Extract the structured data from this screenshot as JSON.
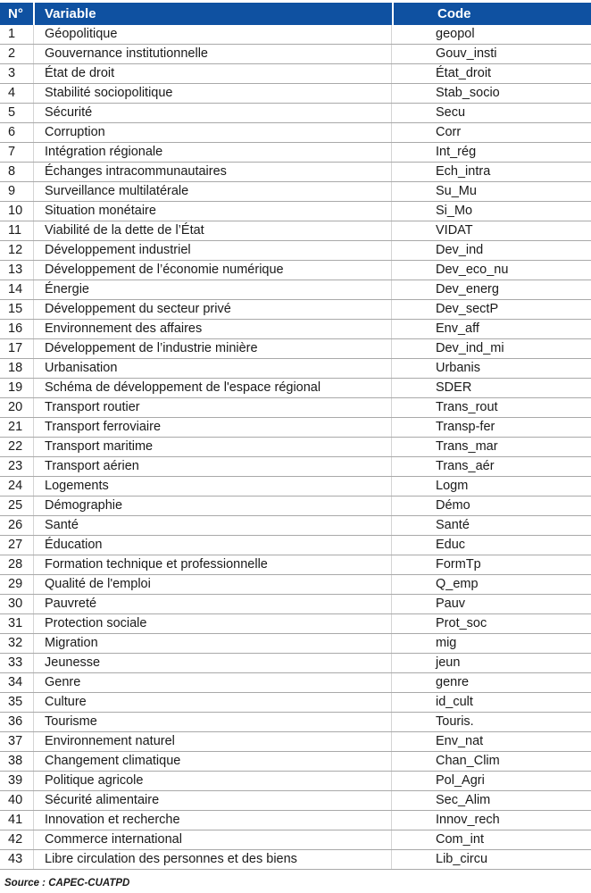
{
  "table": {
    "columns": [
      {
        "key": "num",
        "label": "N°"
      },
      {
        "key": "variable",
        "label": "Variable"
      },
      {
        "key": "code",
        "label": "Code"
      }
    ],
    "rows": [
      {
        "num": "1",
        "variable": "Géopolitique",
        "code": "geopol"
      },
      {
        "num": "2",
        "variable": "Gouvernance institutionnelle",
        "code": "Gouv_insti"
      },
      {
        "num": "3",
        "variable": "État de droit",
        "code": "État_droit"
      },
      {
        "num": "4",
        "variable": "Stabilité sociopolitique",
        "code": "Stab_socio"
      },
      {
        "num": "5",
        "variable": "Sécurité",
        "code": "Secu"
      },
      {
        "num": "6",
        "variable": "Corruption",
        "code": "Corr"
      },
      {
        "num": "7",
        "variable": "Intégration régionale",
        "code": "Int_rég"
      },
      {
        "num": "8",
        "variable": "Échanges intracommunautaires",
        "code": "Ech_intra"
      },
      {
        "num": "9",
        "variable": "Surveillance multilatérale",
        "code": "Su_Mu"
      },
      {
        "num": "10",
        "variable": "Situation monétaire",
        "code": "Si_Mo"
      },
      {
        "num": "11",
        "variable": "Viabilité de la dette de l’État",
        "code": "VIDAT"
      },
      {
        "num": "12",
        "variable": "Développement industriel",
        "code": "Dev_ind"
      },
      {
        "num": "13",
        "variable": "Développement de l’économie numérique",
        "code": "Dev_eco_nu"
      },
      {
        "num": "14",
        "variable": "Énergie",
        "code": "Dev_energ"
      },
      {
        "num": "15",
        "variable": "Développement du secteur privé",
        "code": "Dev_sectP"
      },
      {
        "num": "16",
        "variable": "Environnement des affaires",
        "code": "Env_aff"
      },
      {
        "num": "17",
        "variable": "Développement de l’industrie minière",
        "code": "Dev_ind_mi"
      },
      {
        "num": "18",
        "variable": "Urbanisation",
        "code": "Urbanis"
      },
      {
        "num": "19",
        "variable": "Schéma de développement de l'espace régional",
        "code": "SDER"
      },
      {
        "num": "20",
        "variable": "Transport routier",
        "code": "Trans_rout"
      },
      {
        "num": "21",
        "variable": "Transport ferroviaire",
        "code": "Transp-fer"
      },
      {
        "num": "22",
        "variable": "Transport maritime",
        "code": "Trans_mar"
      },
      {
        "num": "23",
        "variable": "Transport aérien",
        "code": "Trans_aér"
      },
      {
        "num": "24",
        "variable": "Logements",
        "code": "Logm"
      },
      {
        "num": "25",
        "variable": "Démographie",
        "code": "Démo"
      },
      {
        "num": "26",
        "variable": "Santé",
        "code": "Santé"
      },
      {
        "num": "27",
        "variable": "Éducation",
        "code": "Educ"
      },
      {
        "num": "28",
        "variable": "Formation technique et professionnelle",
        "code": "FormTp"
      },
      {
        "num": "29",
        "variable": "Qualité de l'emploi",
        "code": "Q_emp"
      },
      {
        "num": "30",
        "variable": "Pauvreté",
        "code": "Pauv"
      },
      {
        "num": "31",
        "variable": "Protection sociale",
        "code": "Prot_soc"
      },
      {
        "num": "32",
        "variable": "Migration",
        "code": "mig"
      },
      {
        "num": "33",
        "variable": "Jeunesse",
        "code": "jeun"
      },
      {
        "num": "34",
        "variable": "Genre",
        "code": "genre"
      },
      {
        "num": "35",
        "variable": "Culture",
        "code": "id_cult"
      },
      {
        "num": "36",
        "variable": "Tourisme",
        "code": "Touris."
      },
      {
        "num": "37",
        "variable": "Environnement naturel",
        "code": "Env_nat"
      },
      {
        "num": "38",
        "variable": "Changement climatique",
        "code": "Chan_Clim"
      },
      {
        "num": "39",
        "variable": "Politique agricole",
        "code": "Pol_Agri"
      },
      {
        "num": "40",
        "variable": "Sécurité alimentaire",
        "code": "Sec_Alim"
      },
      {
        "num": "41",
        "variable": "Innovation et recherche",
        "code": "Innov_rech"
      },
      {
        "num": "42",
        "variable": "Commerce international",
        "code": "Com_int"
      },
      {
        "num": "43",
        "variable": "Libre circulation des personnes et des biens",
        "code": "Lib_circu"
      }
    ]
  },
  "source_note": "Source : CAPEC-CUATPD",
  "colors": {
    "header_bg": "#0F51A1",
    "header_text": "#FFFFFF",
    "row_separator": "#A9A9A9",
    "column_divider": "#D5D5D5",
    "body_text": "#1A1A1A"
  }
}
